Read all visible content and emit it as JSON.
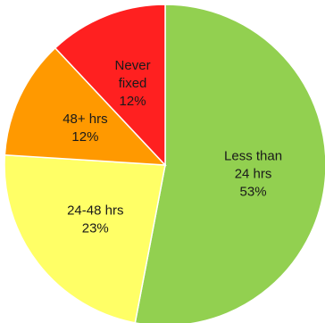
{
  "chart_data": {
    "type": "pie",
    "title": "",
    "start_angle_deg": 0,
    "direction": "clockwise",
    "slices": [
      {
        "lines": [
          "Less than",
          "24 hrs",
          "53%"
        ],
        "value": 53,
        "color": "#92d050"
      },
      {
        "lines": [
          "24-48 hrs",
          "23%"
        ],
        "value": 23,
        "color": "#ffff66"
      },
      {
        "lines": [
          "48+ hrs",
          "12%"
        ],
        "value": 12,
        "color": "#ff9900"
      },
      {
        "lines": [
          "Never",
          "fixed",
          "12%"
        ],
        "value": 12,
        "color": "#ff2020"
      }
    ]
  }
}
